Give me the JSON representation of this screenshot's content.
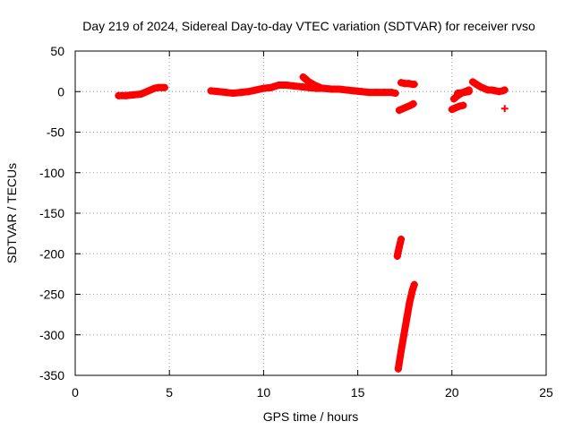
{
  "chart_data": {
    "type": "scatter",
    "title": "Day 219 of 2024, Sidereal Day-to-day VTEC variation (SDTVAR) for receiver rvso",
    "xlabel": "GPS time / hours",
    "ylabel": "SDTVAR / TECUs",
    "xlim": [
      0,
      25
    ],
    "ylim": [
      -350,
      50
    ],
    "xticks": [
      "0",
      "5",
      "10",
      "15",
      "20",
      "25"
    ],
    "yticks": [
      "50",
      "0",
      "-50",
      "-100",
      "-150",
      "-200",
      "-250",
      "-300",
      "-350"
    ],
    "grid": true,
    "marker": "plus",
    "color": "#ff0000",
    "series": [
      {
        "segments": [
          {
            "x": [
              2.3,
              2.7,
              3.1,
              3.5,
              3.8,
              4.0,
              4.2,
              4.4,
              4.6,
              4.75
            ],
            "y": [
              -5,
              -5,
              -4,
              -3,
              0,
              2,
              4,
              5,
              5,
              5
            ]
          },
          {
            "x": [
              7.2,
              7.6,
              8.0,
              8.4,
              8.8,
              9.2,
              9.6,
              10.0,
              10.4,
              10.8,
              11.2,
              11.6,
              12.0,
              12.4,
              12.8,
              13.2,
              13.6,
              14.0,
              14.4,
              14.8,
              15.2,
              15.6,
              16.0,
              16.4,
              16.8,
              17.0
            ],
            "y": [
              1,
              0,
              -1,
              -2,
              -1,
              0,
              2,
              4,
              5,
              8,
              8,
              7,
              6,
              5,
              4,
              4,
              3,
              3,
              2,
              1,
              0,
              -1,
              -1,
              -1,
              -1,
              -2
            ]
          },
          {
            "x": [
              12.1,
              12.4,
              12.7,
              13.0
            ],
            "y": [
              18,
              12,
              8,
              5
            ]
          },
          {
            "x": [
              17.3,
              17.5,
              17.7,
              17.9,
              18.0
            ],
            "y": [
              11,
              10,
              10,
              9,
              9
            ]
          },
          {
            "x": [
              17.2,
              17.4,
              17.6,
              17.8,
              17.95
            ],
            "y": [
              -23,
              -21,
              -19,
              -17,
              -15
            ]
          },
          {
            "x": [
              17.1,
              17.15,
              17.2,
              17.25,
              17.3
            ],
            "y": [
              -203,
              -197,
              -192,
              -187,
              -182
            ]
          },
          {
            "x": [
              17.15,
              17.3,
              17.45,
              17.6,
              17.75,
              17.9,
              18.0
            ],
            "y": [
              -342,
              -320,
              -300,
              -280,
              -260,
              -245,
              -238
            ]
          },
          {
            "x": [
              20.0,
              20.2,
              20.4,
              20.6
            ],
            "y": [
              -22,
              -20,
              -18,
              -17
            ]
          },
          {
            "x": [
              20.1,
              20.3,
              20.5,
              20.7,
              20.9
            ],
            "y": [
              -9,
              -5,
              -2,
              0,
              2
            ]
          },
          {
            "x": [
              20.3,
              20.6,
              20.9
            ],
            "y": [
              -2,
              -1,
              0
            ]
          },
          {
            "x": [
              21.1,
              21.3,
              21.5,
              21.7,
              21.9,
              22.1,
              22.3,
              22.5,
              22.7,
              22.8
            ],
            "y": [
              12,
              9,
              6,
              4,
              2,
              2,
              1,
              0,
              1,
              2
            ]
          },
          {
            "x": [
              22.8
            ],
            "y": [
              -21
            ]
          }
        ]
      }
    ]
  }
}
